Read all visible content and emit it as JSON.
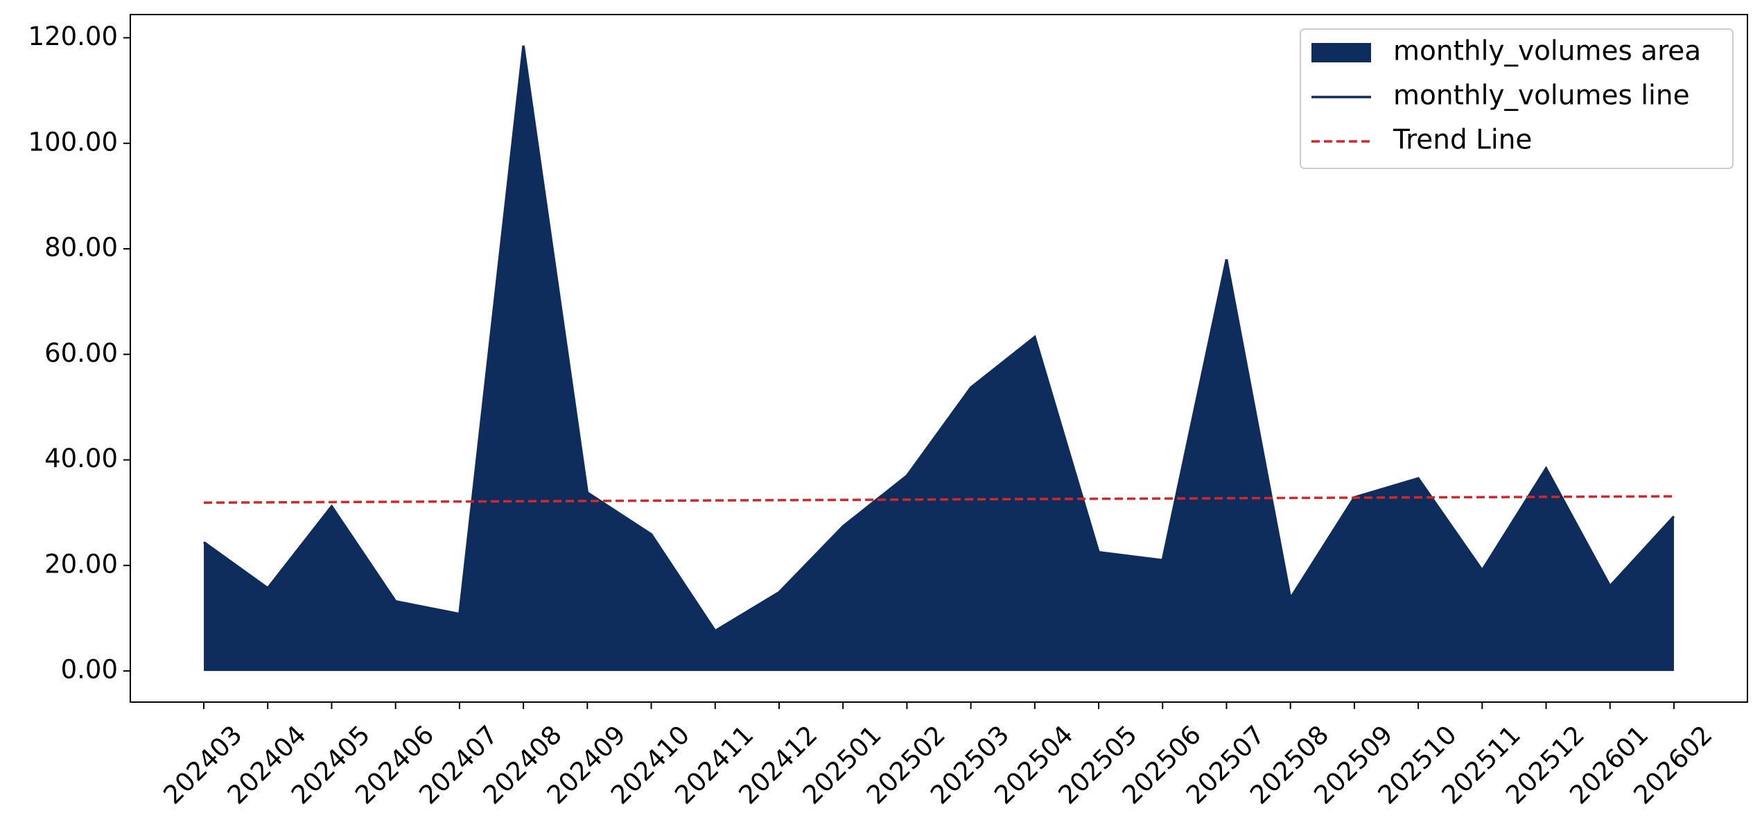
{
  "chart_data": {
    "type": "area",
    "categories": [
      "202403",
      "202404",
      "202405",
      "202406",
      "202407",
      "202408",
      "202409",
      "202410",
      "202411",
      "202412",
      "202501",
      "202502",
      "202503",
      "202504",
      "202505",
      "202506",
      "202507",
      "202508",
      "202509",
      "202510",
      "202511",
      "202512",
      "202601",
      "202602"
    ],
    "series": [
      {
        "name": "monthly_volumes area",
        "kind": "area",
        "color": "#0f2d5c",
        "values": [
          24.4,
          15.7,
          31.2,
          13.2,
          10.8,
          118.5,
          33.8,
          25.9,
          7.6,
          14.9,
          27.4,
          37.0,
          53.7,
          63.3,
          22.5,
          21.0,
          78.0,
          13.8,
          32.9,
          36.5,
          19.1,
          38.4,
          16.1,
          29.3
        ]
      },
      {
        "name": "monthly_volumes line",
        "kind": "line",
        "color": "#0f2d5c",
        "values": [
          24.4,
          15.7,
          31.2,
          13.2,
          10.8,
          118.5,
          33.8,
          25.9,
          7.6,
          14.9,
          27.4,
          37.0,
          53.7,
          63.3,
          22.5,
          21.0,
          78.0,
          13.8,
          32.9,
          36.5,
          19.1,
          38.4,
          16.1,
          29.3
        ]
      },
      {
        "name": "Trend Line",
        "kind": "dashed-line",
        "color": "#d62728",
        "values": [
          31.9,
          31.95,
          32.0,
          32.06,
          32.11,
          32.16,
          32.21,
          32.27,
          32.32,
          32.37,
          32.42,
          32.47,
          32.53,
          32.58,
          32.63,
          32.68,
          32.73,
          32.79,
          32.84,
          32.89,
          32.94,
          32.99,
          33.05,
          33.1
        ]
      }
    ],
    "ylim": [
      -5.9,
      124.4
    ],
    "yticks": [
      {
        "value": 0,
        "label": "0.00"
      },
      {
        "value": 20,
        "label": "20.00"
      },
      {
        "value": 40,
        "label": "40.00"
      },
      {
        "value": 60,
        "label": "60.00"
      },
      {
        "value": 80,
        "label": "80.00"
      },
      {
        "value": 100,
        "label": "100.00"
      },
      {
        "value": 120,
        "label": "120.00"
      }
    ],
    "legend": "upper right",
    "grid": false
  }
}
